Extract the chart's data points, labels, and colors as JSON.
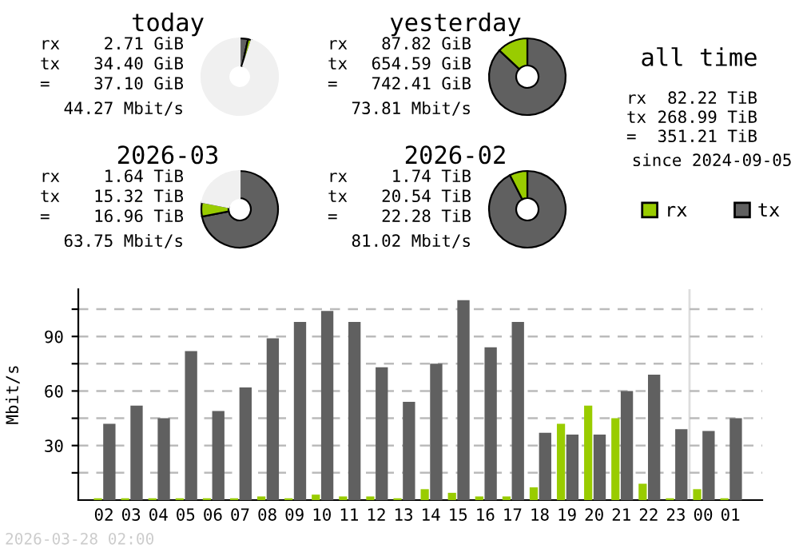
{
  "chart_data": [
    {
      "type": "donut",
      "title": "today",
      "categories": [
        null,
        null,
        null
      ],
      "values": [
        3.5,
        1.5,
        95
      ],
      "colors": [
        "#606060",
        "#99cc00",
        "#f0f0f0"
      ],
      "annotations": [
        "rx",
        "2.71 GiB",
        "tx",
        "34.40 GiB",
        "=",
        "37.10 GiB",
        "44.27 Mbit/s"
      ]
    },
    {
      "type": "donut",
      "title": "yesterday",
      "categories": [
        null,
        null
      ],
      "values": [
        87,
        13
      ],
      "colors": [
        "#606060",
        "#99cc00"
      ],
      "annotations": [
        "rx",
        "87.82 GiB",
        "tx",
        "654.59 GiB",
        "=",
        "742.41 GiB",
        "73.81 Mbit/s"
      ]
    },
    {
      "type": "other",
      "title": "all time",
      "annotations": [
        "rx",
        "82.22 TiB",
        "tx",
        "268.99 TiB",
        "=",
        "351.21 TiB",
        "since 2024-09-05"
      ]
    },
    {
      "type": "donut",
      "title": "2026-03",
      "categories": [
        null,
        null,
        null
      ],
      "values": [
        72,
        6,
        22
      ],
      "colors": [
        "#606060",
        "#99cc00",
        "#f0f0f0"
      ],
      "annotations": [
        "rx",
        "1.64 TiB",
        "tx",
        "15.32 TiB",
        "=",
        "16.96 TiB",
        "63.75 Mbit/s"
      ]
    },
    {
      "type": "donut",
      "title": "2026-02",
      "categories": [
        null,
        null
      ],
      "values": [
        92.5,
        7.5
      ],
      "colors": [
        "#606060",
        "#99cc00"
      ],
      "annotations": [
        "rx",
        "1.74 TiB",
        "tx",
        "20.54 TiB",
        "=",
        "22.28 TiB",
        "81.02 Mbit/s"
      ]
    },
    {
      "type": "bar",
      "ylabel": "Mbit/s",
      "categories": [
        "02",
        "03",
        "04",
        "05",
        "06",
        "07",
        "08",
        "09",
        "10",
        "11",
        "12",
        "13",
        "14",
        "15",
        "16",
        "17",
        "18",
        "19",
        "20",
        "21",
        "22",
        "23",
        "00",
        "01"
      ],
      "series": [
        {
          "name": "rx",
          "color": "#99cc00",
          "values": [
            1,
            1,
            1,
            1,
            1,
            1,
            2,
            1,
            3,
            2,
            2,
            1,
            6,
            4,
            2,
            2,
            7,
            42,
            52,
            45,
            9,
            1,
            6,
            1
          ]
        },
        {
          "name": "tx",
          "color": "#606060",
          "values": [
            42,
            52,
            45,
            82,
            49,
            62,
            89,
            98,
            104,
            98,
            73,
            54,
            75,
            110,
            84,
            98,
            37,
            36,
            36,
            60,
            69,
            39,
            38,
            45
          ]
        }
      ],
      "ylim": [
        0,
        116
      ],
      "yticks": [
        {
          "value": 15,
          "label": null
        },
        30,
        {
          "value": 45,
          "label": null
        },
        60,
        {
          "value": 75,
          "label": null
        },
        90,
        {
          "value": 105,
          "label": null
        }
      ],
      "grid": "y",
      "legend": "top right",
      "ref_lines": [
        {
          "axis": "x",
          "value": "00",
          "label": null,
          "color": "#dddddd"
        }
      ],
      "annotations": [
        "2026-03-28 02:00"
      ]
    }
  ]
}
